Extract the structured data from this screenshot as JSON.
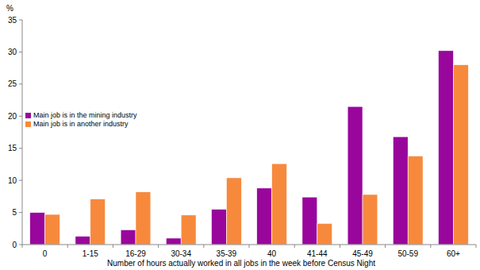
{
  "chart_data": {
    "type": "bar",
    "y_label": "%",
    "x_label": "Number of hours actually worked in all jobs in the week before Census Night",
    "categories": [
      "0",
      "1-15",
      "16-29",
      "30-34",
      "35-39",
      "40",
      "41-44",
      "45-49",
      "50-59",
      "60+"
    ],
    "series": [
      {
        "name": "Main job is in the mining industry",
        "color": "#99069c",
        "values": [
          5.0,
          1.3,
          2.3,
          1.0,
          5.5,
          8.8,
          7.4,
          21.5,
          16.8,
          30.2
        ]
      },
      {
        "name": "Main job is in another industry",
        "color": "#f7893d",
        "values": [
          4.7,
          7.1,
          8.2,
          4.6,
          10.4,
          12.6,
          3.3,
          7.8,
          13.8,
          28.0
        ]
      }
    ],
    "ylim": [
      0,
      35
    ],
    "yticks": [
      0,
      5,
      10,
      15,
      20,
      25,
      30,
      35
    ],
    "grid": false,
    "legend": "left"
  }
}
